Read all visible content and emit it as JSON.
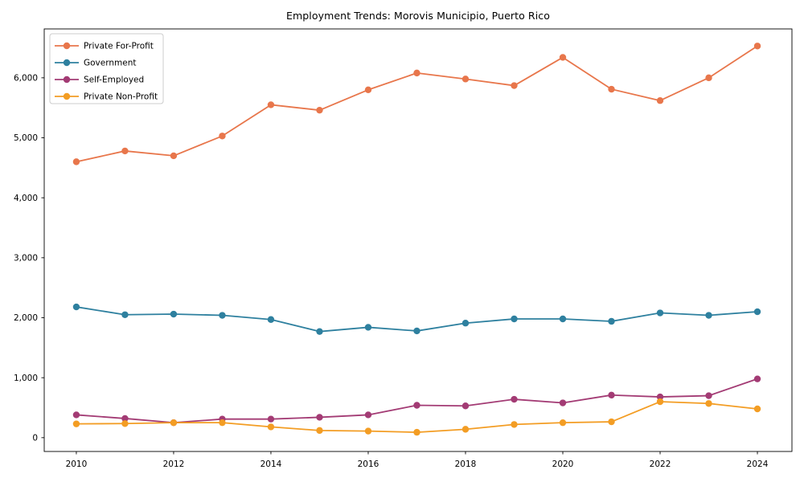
{
  "figure": {
    "title": "Employment Trends: Morovis Municipio, Puerto Rico"
  },
  "chart_data": {
    "type": "line",
    "title": "Employment Trends: Morovis Municipio, Puerto Rico",
    "xlabel": "",
    "ylabel": "",
    "grid": false,
    "legend_position": "upper left",
    "x": [
      2010,
      2011,
      2012,
      2013,
      2014,
      2015,
      2016,
      2017,
      2018,
      2019,
      2020,
      2021,
      2022,
      2023,
      2024
    ],
    "xticks": [
      2010,
      2012,
      2014,
      2016,
      2018,
      2020,
      2022,
      2024
    ],
    "yticks": [
      0,
      1000,
      2000,
      3000,
      4000,
      5000,
      6000
    ],
    "ytick_labels": [
      "0",
      "1,000",
      "2,000",
      "3,000",
      "4,000",
      "5,000",
      "6,000"
    ],
    "xlim": [
      2009.34,
      2024.71
    ],
    "ylim": [
      -230,
      6815
    ],
    "series": [
      {
        "name": "Private For-Profit",
        "color": "#e8764b",
        "values": [
          4600,
          4780,
          4700,
          5030,
          5550,
          5460,
          5800,
          6080,
          5980,
          5870,
          6340,
          5810,
          5620,
          6000,
          6530
        ]
      },
      {
        "name": "Government",
        "color": "#2e809f",
        "values": [
          2180,
          2050,
          2060,
          2040,
          1970,
          1770,
          1840,
          1780,
          1910,
          1980,
          1980,
          1940,
          2080,
          2040,
          2100
        ]
      },
      {
        "name": "Self-Employed",
        "color": "#a33b74",
        "values": [
          380,
          320,
          250,
          310,
          310,
          340,
          380,
          540,
          530,
          640,
          580,
          710,
          680,
          700,
          980
        ]
      },
      {
        "name": "Private Non-Profit",
        "color": "#f39d24",
        "values": [
          230,
          235,
          250,
          250,
          180,
          120,
          110,
          90,
          140,
          220,
          250,
          265,
          600,
          570,
          480
        ]
      }
    ]
  }
}
